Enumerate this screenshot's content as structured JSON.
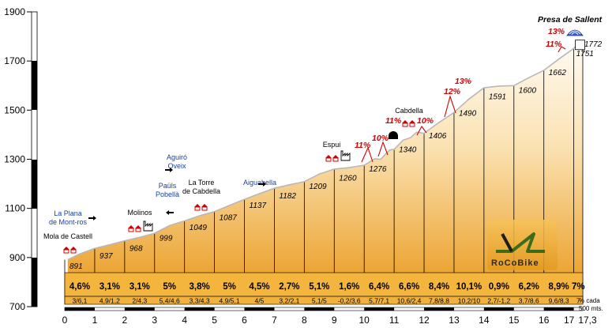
{
  "chart_data": {
    "type": "area",
    "title": "Presa de Sallent",
    "xlabel": "",
    "ylabel": "",
    "xlim": [
      0,
      17.3
    ],
    "ylim": [
      700,
      1900
    ],
    "y_ticks": [
      700,
      900,
      1100,
      1300,
      1500,
      1700,
      1900
    ],
    "x_ticks": [
      "0",
      "1",
      "2",
      "3",
      "4",
      "5",
      "6",
      "7",
      "8",
      "9",
      "10",
      "11",
      "12",
      "13",
      "14",
      "15",
      "16",
      "17",
      "17,3"
    ],
    "grid": false,
    "elevation_profile": [
      [
        0.1,
        891
      ],
      [
        0.5,
        915
      ],
      [
        1,
        937
      ],
      [
        1.5,
        952
      ],
      [
        2,
        968
      ],
      [
        2.5,
        982
      ],
      [
        3,
        999
      ],
      [
        3.5,
        1030
      ],
      [
        4,
        1049
      ],
      [
        4.5,
        1070
      ],
      [
        5,
        1087
      ],
      [
        5.5,
        1112
      ],
      [
        6,
        1137
      ],
      [
        6.5,
        1160
      ],
      [
        7,
        1182
      ],
      [
        7.5,
        1196
      ],
      [
        8,
        1209
      ],
      [
        8.5,
        1240
      ],
      [
        9,
        1260
      ],
      [
        9.5,
        1266
      ],
      [
        10,
        1276
      ],
      [
        10.35,
        1302
      ],
      [
        10.55,
        1300
      ],
      [
        10.85,
        1338
      ],
      [
        11,
        1340
      ],
      [
        11.3,
        1378
      ],
      [
        11.55,
        1388
      ],
      [
        11.75,
        1410
      ],
      [
        12,
        1406
      ],
      [
        12.5,
        1450
      ],
      [
        13,
        1490
      ],
      [
        13.5,
        1545
      ],
      [
        14,
        1591
      ],
      [
        14.5,
        1598
      ],
      [
        15,
        1600
      ],
      [
        15.5,
        1632
      ],
      [
        16,
        1662
      ],
      [
        16.5,
        1708
      ],
      [
        17,
        1751
      ],
      [
        17.15,
        1772
      ],
      [
        17.3,
        1772
      ]
    ],
    "segment_labels": [
      {
        "x": 0,
        "elev": 891,
        "grad": "4,6%",
        "range": "3/6,1"
      },
      {
        "x": 1,
        "elev": 937,
        "grad": "3,1%",
        "range": "4,9/1,2"
      },
      {
        "x": 2,
        "elev": 968,
        "grad": "3,1%",
        "range": "2/4,3"
      },
      {
        "x": 3,
        "elev": 999,
        "grad": "5%",
        "range": "5,4/4,6"
      },
      {
        "x": 4,
        "elev": 1049,
        "grad": "3,8%",
        "range": "3,3/4,3"
      },
      {
        "x": 5,
        "elev": 1087,
        "grad": "5%",
        "range": "4,9/5,1"
      },
      {
        "x": 6,
        "elev": 1137,
        "grad": "4,5%",
        "range": "4/5"
      },
      {
        "x": 7,
        "elev": 1182,
        "grad": "2,7%",
        "range": "3,2/2,1"
      },
      {
        "x": 8,
        "elev": 1209,
        "grad": "5,1%",
        "range": "5,1/5"
      },
      {
        "x": 9,
        "elev": 1260,
        "grad": "1,6%",
        "range": "-0,2/3,6"
      },
      {
        "x": 10,
        "elev": 1276,
        "grad": "6,4%",
        "range": "5,7/7,1"
      },
      {
        "x": 11,
        "elev": 1340,
        "grad": "6,6%",
        "range": "10,6/2,4"
      },
      {
        "x": 12,
        "elev": 1406,
        "grad": "8,4%",
        "range": "7,8/8,8"
      },
      {
        "x": 13,
        "elev": 1490,
        "grad": "10,1%",
        "range": "10,2/10"
      },
      {
        "x": 14,
        "elev": 1591,
        "grad": "0,9%",
        "range": "2,7/-1,2"
      },
      {
        "x": 15,
        "elev": 1600,
        "grad": "6,2%",
        "range": "3,7/8,6"
      },
      {
        "x": 16,
        "elev": 1662,
        "grad": "8,9%",
        "range": "9,6/8,3"
      },
      {
        "x": 17,
        "elev": 1751,
        "grad": "7%",
        "range": "7"
      }
    ],
    "end_elevation": "1772",
    "note_lines": [
      "% cada",
      "500 mts."
    ],
    "places": [
      {
        "name": "Mola de Castell",
        "x": 0.1,
        "blue": false,
        "icon": "houses-icon"
      },
      {
        "name": "La Plana de Mont-ros",
        "x": 0.9,
        "blue": true,
        "icon": "arrow-right-icon"
      },
      {
        "name": "Molinos",
        "x": 2.4,
        "blue": false,
        "icon": "houses-icon"
      },
      {
        "name": "Aguiró Oveix",
        "x": 3.8,
        "blue": true,
        "icon": "arrow-right-icon"
      },
      {
        "name": "Paüls Pobellà",
        "x": 3.8,
        "blue": true,
        "icon": "arrow-left-icon"
      },
      {
        "name": "La Torre de Cabdella",
        "x": 4.7,
        "blue": false,
        "icon": "houses-icon"
      },
      {
        "name": "Aiguabella",
        "x": 6.9,
        "blue": true,
        "icon": "arrow-right-icon"
      },
      {
        "name": "Espui",
        "x": 9.1,
        "blue": false,
        "icon": "houses-icon"
      },
      {
        "name": "Cabdella",
        "x": 11.9,
        "blue": false,
        "icon": "houses-icon"
      }
    ],
    "red_peaks": [
      "11%",
      "10%",
      "11%",
      "10%",
      "12%",
      "13%",
      "11%",
      "13%"
    ],
    "logo": "RoCoBike",
    "colors": {
      "fill_top": "#fff6e6",
      "fill_bottom": "#e8a02c",
      "band": "#f2b13c",
      "profile_line": "#c9c9c9",
      "red": "#d40000",
      "blue": "#1a3fa0"
    }
  }
}
